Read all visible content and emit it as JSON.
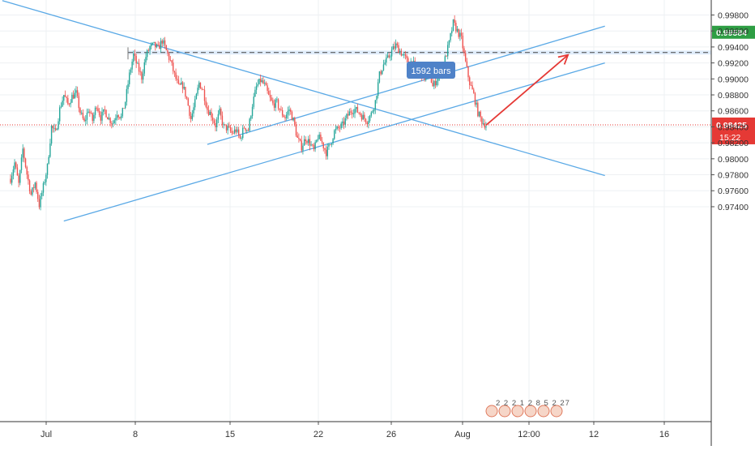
{
  "chart_data": {
    "type": "candlestick",
    "instrument": "",
    "x_ticks": [
      "Jul",
      "8",
      "15",
      "22",
      "26",
      "Aug",
      "12:00",
      "12",
      "16"
    ],
    "y_ticks": [
      "0.99800",
      "0.99600",
      "0.99400",
      "0.99200",
      "0.99000",
      "0.98800",
      "0.98600",
      "0.98400",
      "0.98200",
      "0.98000",
      "0.97800",
      "0.97600",
      "0.97400"
    ],
    "ylim": [
      0.9722,
      0.9989
    ],
    "current_price": {
      "label": "0.98425",
      "value": 0.98425,
      "countdown": "15:22"
    },
    "marker_price": {
      "label": "0.99584",
      "value": 0.99584
    },
    "range_note": "1592 bars",
    "resistance_zone": [
      0.99305,
      0.99355
    ],
    "series_colors": {
      "up": "#26a69a",
      "down": "#ef5350"
    },
    "drawing_color": "#5aa9e6",
    "arrow_color": "#e53935",
    "events_strip": "2 2 2 1 2 8 5 2 27",
    "grid": true,
    "candles_path": [
      [
        0,
        0.9775
      ],
      [
        1,
        0.9795
      ],
      [
        2,
        0.9768
      ],
      [
        3,
        0.9812
      ],
      [
        4,
        0.9781
      ],
      [
        5,
        0.9755
      ],
      [
        6,
        0.977
      ],
      [
        7,
        0.9742
      ],
      [
        8,
        0.9765
      ],
      [
        9,
        0.979
      ],
      [
        10,
        0.984
      ],
      [
        11,
        0.9832
      ],
      [
        12,
        0.9862
      ],
      [
        13,
        0.988
      ],
      [
        14,
        0.9868
      ],
      [
        15,
        0.9878
      ],
      [
        16,
        0.9882
      ],
      [
        17,
        0.9858
      ],
      [
        18,
        0.9845
      ],
      [
        19,
        0.9862
      ],
      [
        20,
        0.9848
      ],
      [
        21,
        0.9868
      ],
      [
        22,
        0.9852
      ],
      [
        23,
        0.986
      ],
      [
        24,
        0.985
      ],
      [
        25,
        0.9845
      ],
      [
        26,
        0.9858
      ],
      [
        27,
        0.9852
      ],
      [
        28,
        0.9872
      ],
      [
        29,
        0.9905
      ],
      [
        30,
        0.993
      ],
      [
        31,
        0.9915
      ],
      [
        32,
        0.9902
      ],
      [
        33,
        0.9928
      ],
      [
        34,
        0.994
      ],
      [
        35,
        0.9942
      ],
      [
        36,
        0.9938
      ],
      [
        37,
        0.9948
      ],
      [
        38,
        0.9935
      ],
      [
        39,
        0.9922
      ],
      [
        40,
        0.9905
      ],
      [
        41,
        0.989
      ],
      [
        42,
        0.9892
      ],
      [
        43,
        0.9875
      ],
      [
        44,
        0.985
      ],
      [
        45,
        0.987
      ],
      [
        46,
        0.9895
      ],
      [
        47,
        0.9885
      ],
      [
        48,
        0.9862
      ],
      [
        49,
        0.9855
      ],
      [
        50,
        0.9842
      ],
      [
        51,
        0.9858
      ],
      [
        52,
        0.984
      ],
      [
        53,
        0.9838
      ],
      [
        54,
        0.9832
      ],
      [
        55,
        0.9836
      ],
      [
        56,
        0.9825
      ],
      [
        57,
        0.984
      ],
      [
        58,
        0.9836
      ],
      [
        59,
        0.9868
      ],
      [
        60,
        0.989
      ],
      [
        61,
        0.9898
      ],
      [
        62,
        0.9892
      ],
      [
        63,
        0.9878
      ],
      [
        64,
        0.9868
      ],
      [
        65,
        0.987
      ],
      [
        66,
        0.9858
      ],
      [
        67,
        0.9852
      ],
      [
        68,
        0.9862
      ],
      [
        69,
        0.9848
      ],
      [
        70,
        0.9825
      ],
      [
        71,
        0.9815
      ],
      [
        72,
        0.9826
      ],
      [
        73,
        0.982
      ],
      [
        74,
        0.981
      ],
      [
        75,
        0.9828
      ],
      [
        76,
        0.982
      ],
      [
        77,
        0.9808
      ],
      [
        78,
        0.9818
      ],
      [
        79,
        0.9834
      ],
      [
        80,
        0.9838
      ],
      [
        81,
        0.9842
      ],
      [
        82,
        0.9852
      ],
      [
        83,
        0.986
      ],
      [
        84,
        0.9862
      ],
      [
        85,
        0.9858
      ],
      [
        86,
        0.9852
      ],
      [
        87,
        0.9848
      ],
      [
        88,
        0.9856
      ],
      [
        89,
        0.9872
      ],
      [
        90,
        0.9905
      ],
      [
        91,
        0.9918
      ],
      [
        92,
        0.9925
      ],
      [
        93,
        0.9935
      ],
      [
        94,
        0.9942
      ],
      [
        95,
        0.9935
      ],
      [
        96,
        0.9928
      ],
      [
        97,
        0.992
      ],
      [
        98,
        0.9922
      ],
      [
        99,
        0.991
      ],
      [
        100,
        0.9908
      ],
      [
        101,
        0.9902
      ],
      [
        102,
        0.9912
      ],
      [
        103,
        0.989
      ],
      [
        104,
        0.99
      ],
      [
        105,
        0.9908
      ],
      [
        106,
        0.9925
      ],
      [
        107,
        0.9945
      ],
      [
        108,
        0.997
      ],
      [
        109,
        0.996
      ],
      [
        110,
        0.995
      ],
      [
        111,
        0.992
      ],
      [
        112,
        0.9895
      ],
      [
        113,
        0.988
      ],
      [
        114,
        0.9858
      ],
      [
        115,
        0.9847
      ],
      [
        116,
        0.9842
      ]
    ],
    "lines": [
      {
        "name": "upper-descending-trendline",
        "from": [
          -2,
          0.9998
        ],
        "to": [
          145,
          0.9779
        ]
      },
      {
        "name": "lower-ascending-trendline",
        "from": [
          13,
          0.9722
        ],
        "to": [
          145,
          0.992
        ]
      },
      {
        "name": "upper-ascending-channel-line",
        "from": [
          48,
          0.9818
        ],
        "to": [
          145,
          0.9966
        ]
      }
    ],
    "arrow": {
      "from": [
        116,
        0.9842
      ],
      "to": [
        136,
        0.993
      ]
    }
  }
}
